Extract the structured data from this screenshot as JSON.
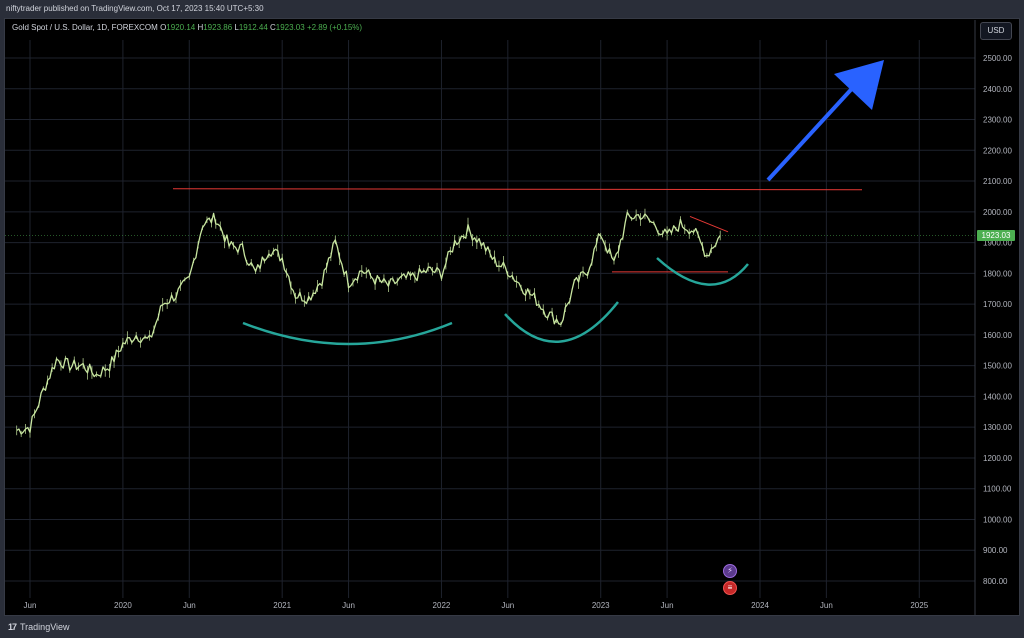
{
  "header": {
    "publisher_text": "niftytrader published on TradingView.com, Oct 17, 2023 15:40 UTC+5:30"
  },
  "legend": {
    "symbol": "Gold Spot / U.S. Dollar, 1D, FOREXCOM",
    "open_label": "O",
    "open": "1920.14",
    "high_label": "H",
    "high": "1923.86",
    "low_label": "L",
    "low": "1912.44",
    "close_label": "C",
    "close": "1923.03",
    "change": "+2.89 (+0.15%)"
  },
  "currency_button": "USD",
  "last_price": "1923.03",
  "footer": {
    "brand": "TradingView"
  },
  "colors": {
    "background": "#000000",
    "candles": "#c8e6a0",
    "resistance_line": "#e53935",
    "curves": "#26a69a",
    "arrow": "#2962ff",
    "price_tag": "#4caf50"
  },
  "icons": [
    "lightning-icon",
    "us-flag-icon"
  ],
  "chart_data": {
    "type": "line",
    "title": "",
    "xlabel": "",
    "ylabel": "",
    "ylim": [
      770,
      2570
    ],
    "y_ticks": [
      "800.00",
      "900.00",
      "1000.00",
      "1100.00",
      "1200.00",
      "1300.00",
      "1400.00",
      "1500.00",
      "1600.00",
      "1700.00",
      "1800.00",
      "1900.00",
      "2000.00",
      "2100.00",
      "2200.00",
      "2300.00",
      "2400.00",
      "2500.00"
    ],
    "x_ticks": [
      "Jun",
      "2020",
      "Jun",
      "2021",
      "Jun",
      "2022",
      "Jun",
      "2023",
      "Jun",
      "2024",
      "Jun",
      "2025"
    ],
    "x_tick_dates": [
      "2019-06",
      "2020-01",
      "2020-06",
      "2021-01",
      "2021-06",
      "2022-01",
      "2022-06",
      "2023-01",
      "2023-06",
      "2024-01",
      "2024-06",
      "2025-01"
    ],
    "series": [
      {
        "x": [
          "2019-05",
          "2019-06",
          "2019-07",
          "2019-08",
          "2019-09",
          "2019-10",
          "2019-11",
          "2019-12",
          "2020-01",
          "2020-02",
          "2020-03",
          "2020-04",
          "2020-05",
          "2020-06",
          "2020-07",
          "2020-08",
          "2020-09",
          "2020-10",
          "2020-11",
          "2020-12",
          "2021-01",
          "2021-02",
          "2021-03",
          "2021-04",
          "2021-05",
          "2021-06",
          "2021-07",
          "2021-08",
          "2021-09",
          "2021-10",
          "2021-11",
          "2021-12",
          "2022-01",
          "2022-02",
          "2022-03",
          "2022-04",
          "2022-05",
          "2022-06",
          "2022-07",
          "2022-08",
          "2022-09",
          "2022-10",
          "2022-11",
          "2022-12",
          "2023-01",
          "2023-02",
          "2023-03",
          "2023-04",
          "2023-05",
          "2023-06",
          "2023-07",
          "2023-08",
          "2023-09",
          "2023-10"
        ],
        "values": [
          1290,
          1300,
          1420,
          1520,
          1500,
          1500,
          1470,
          1500,
          1570,
          1600,
          1580,
          1700,
          1730,
          1780,
          1960,
          1980,
          1890,
          1880,
          1800,
          1880,
          1850,
          1730,
          1720,
          1780,
          1900,
          1770,
          1810,
          1780,
          1760,
          1780,
          1790,
          1810,
          1800,
          1900,
          1940,
          1900,
          1840,
          1810,
          1760,
          1720,
          1670,
          1640,
          1760,
          1810,
          1930,
          1830,
          1980,
          1990,
          1960,
          1920,
          1960,
          1940,
          1860,
          1923
        ]
      }
    ],
    "annotations": {
      "resistance_line": 2075,
      "support_line": 1805
    }
  }
}
